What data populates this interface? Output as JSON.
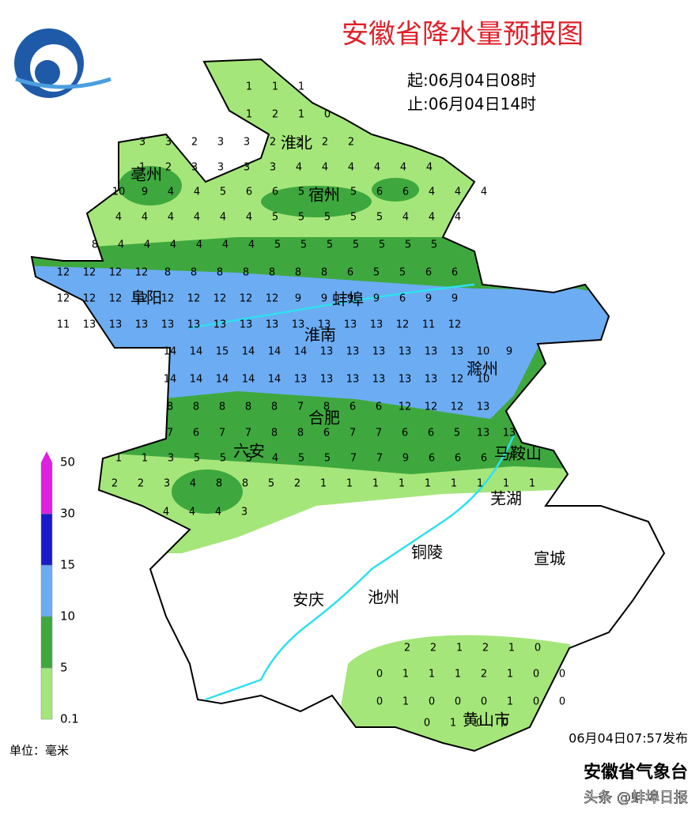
{
  "title": "安徽省降水量预报图",
  "period": {
    "start": "起:06月04日08时",
    "end": "止:06月04日14时"
  },
  "cities": [
    "淮北",
    "亳州",
    "宿州",
    "阜阳",
    "蚌埠",
    "淮南",
    "滁州",
    "合肥",
    "六安",
    "马鞍山",
    "芜湖",
    "铜陵",
    "宣城",
    "安庆",
    "池州",
    "黄山市"
  ],
  "grid": [
    [
      1,
      1,
      1
    ],
    [
      1,
      2,
      1,
      0
    ],
    [
      3,
      3,
      2,
      3,
      3,
      2,
      2,
      2,
      2
    ],
    [
      1,
      2,
      3,
      3,
      3,
      3,
      4,
      4,
      4,
      4,
      4,
      4
    ],
    [
      10,
      9,
      4,
      4,
      5,
      6,
      6,
      5,
      4,
      5,
      6,
      6,
      4,
      4,
      4
    ],
    [
      4,
      4,
      4,
      4,
      4,
      4,
      5,
      5,
      5,
      5,
      5,
      4,
      4,
      4
    ],
    [
      8,
      4,
      4,
      4,
      4,
      4,
      4,
      5,
      5,
      5,
      5,
      5,
      5,
      5
    ],
    [
      12,
      12,
      12,
      12,
      8,
      8,
      8,
      8,
      8,
      8,
      8,
      6,
      5,
      5,
      6,
      6
    ],
    [
      12,
      12,
      12,
      12,
      12,
      12,
      12,
      12,
      12,
      9,
      9,
      9,
      9,
      6,
      9,
      9
    ],
    [
      11,
      13,
      13,
      13,
      13,
      13,
      13,
      13,
      13,
      13,
      13,
      13,
      13,
      12,
      11,
      12
    ],
    [
      14,
      14,
      15,
      14,
      14,
      14,
      13,
      13,
      13,
      13,
      13,
      13,
      10,
      9
    ],
    [
      14,
      14,
      14,
      14,
      14,
      13,
      13,
      13,
      13,
      13,
      13,
      12,
      10
    ],
    [
      8,
      8,
      8,
      8,
      8,
      7,
      8,
      6,
      6,
      12,
      12,
      12,
      13
    ],
    [
      7,
      6,
      7,
      7,
      8,
      8,
      6,
      7,
      7,
      6,
      6,
      5,
      13,
      13
    ],
    [
      1,
      1,
      3,
      5,
      5,
      5,
      4,
      5,
      5,
      7,
      7,
      9,
      6,
      6,
      6,
      7
    ],
    [
      2,
      2,
      3,
      4,
      8,
      8,
      5,
      2,
      1,
      1,
      1,
      1,
      1,
      1,
      1,
      1,
      1
    ],
    [
      4,
      4,
      4,
      3
    ],
    [
      2,
      2,
      1,
      2,
      1,
      0
    ],
    [
      0,
      1,
      1,
      1,
      2,
      1,
      0,
      0
    ],
    [
      0,
      1,
      0,
      0,
      0,
      1,
      0,
      0
    ],
    [
      0,
      1,
      0,
      0
    ]
  ],
  "legend": {
    "levels": [
      0.1,
      5,
      10,
      15,
      30,
      50
    ],
    "colors": [
      "#a5e67a",
      "#3ea83e",
      "#6cacf2",
      "#1a1acc",
      "#e020e0"
    ],
    "unit": "单位：毫米"
  },
  "issued": "06月04日07:57发布",
  "agency": "安徽省气象台",
  "watermark": "头条 @蚌埠日报"
}
